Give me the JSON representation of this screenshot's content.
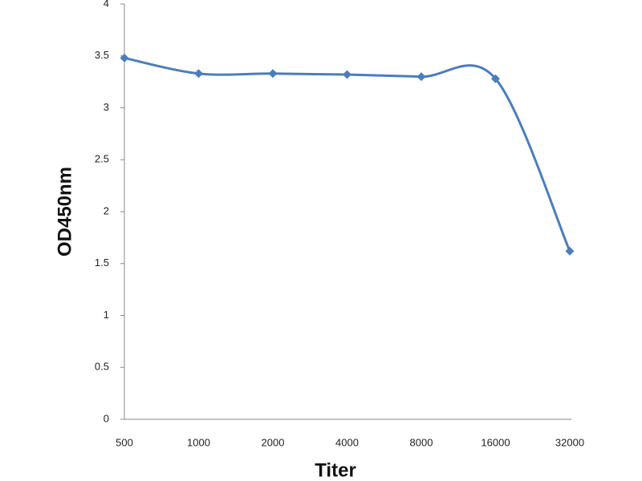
{
  "chart_data": {
    "type": "line",
    "x_label": "Titer",
    "y_label": "OD450nm",
    "categories": [
      "500",
      "1000",
      "2000",
      "4000",
      "8000",
      "16000",
      "32000"
    ],
    "series": [
      {
        "color": "#4a7ebb",
        "values": [
          3.48,
          3.33,
          3.33,
          3.32,
          3.3,
          3.28,
          1.62
        ]
      }
    ],
    "ylim": [
      0,
      4
    ],
    "yticks": [
      0,
      0.5,
      1,
      1.5,
      2,
      2.5,
      3,
      3.5,
      4
    ],
    "grid": false
  }
}
